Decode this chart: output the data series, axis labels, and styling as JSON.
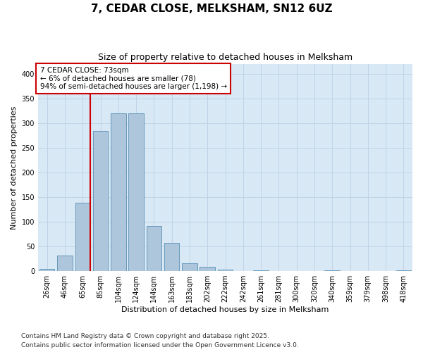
{
  "title": "7, CEDAR CLOSE, MELKSHAM, SN12 6UZ",
  "subtitle": "Size of property relative to detached houses in Melksham",
  "xlabel": "Distribution of detached houses by size in Melksham",
  "ylabel": "Number of detached properties",
  "categories": [
    "26sqm",
    "46sqm",
    "65sqm",
    "85sqm",
    "104sqm",
    "124sqm",
    "144sqm",
    "163sqm",
    "183sqm",
    "202sqm",
    "222sqm",
    "242sqm",
    "261sqm",
    "281sqm",
    "300sqm",
    "320sqm",
    "340sqm",
    "359sqm",
    "379sqm",
    "398sqm",
    "418sqm"
  ],
  "values": [
    5,
    32,
    138,
    284,
    319,
    320,
    91,
    57,
    16,
    9,
    3,
    0,
    1,
    0,
    0,
    0,
    1,
    0,
    0,
    0,
    2
  ],
  "bar_color": "#aec6dc",
  "bar_edge_color": "#6699bb",
  "grid_color": "#c0d4e8",
  "background_color": "#d8e8f4",
  "vline_color": "#cc0000",
  "vline_pos": 2.5,
  "annotation_text": "7 CEDAR CLOSE: 73sqm\n← 6% of detached houses are smaller (78)\n94% of semi-detached houses are larger (1,198) →",
  "annotation_box_color": "#cc0000",
  "ylim": [
    0,
    420
  ],
  "yticks": [
    0,
    50,
    100,
    150,
    200,
    250,
    300,
    350,
    400
  ],
  "footnote_line1": "Contains HM Land Registry data © Crown copyright and database right 2025.",
  "footnote_line2": "Contains public sector information licensed under the Open Government Licence v3.0.",
  "title_fontsize": 11,
  "subtitle_fontsize": 9,
  "label_fontsize": 8,
  "tick_fontsize": 7,
  "annotation_fontsize": 7.5,
  "footnote_fontsize": 6.5
}
